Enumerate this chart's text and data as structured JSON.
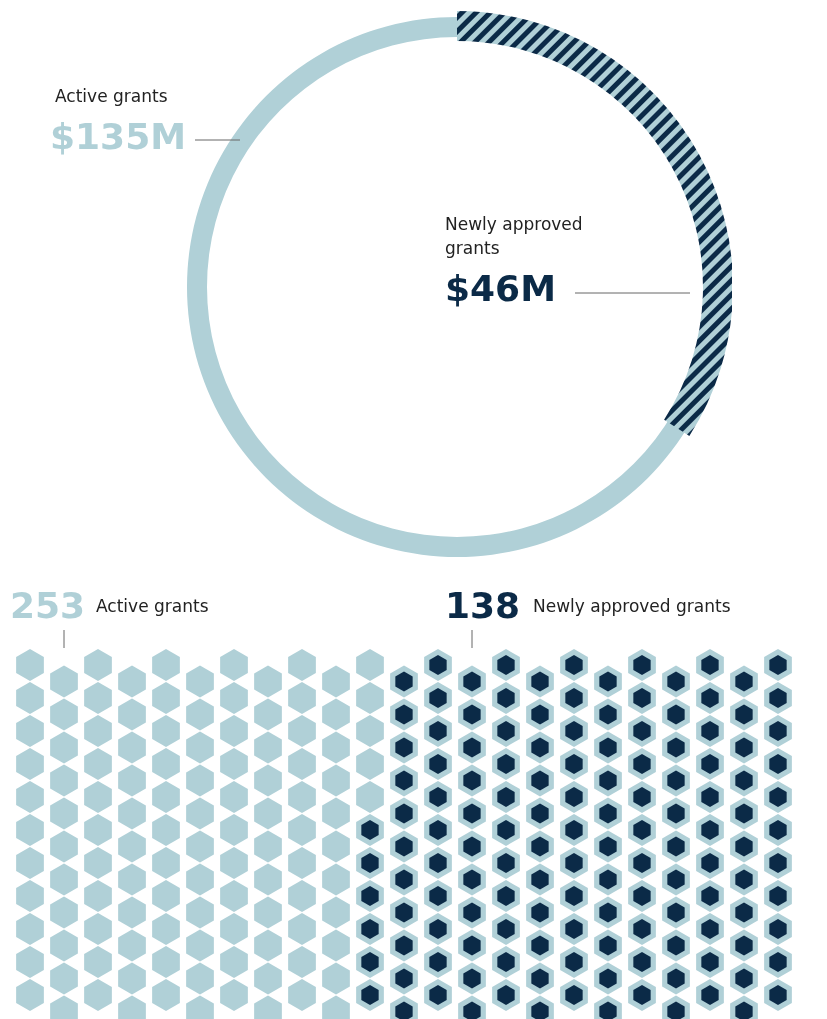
{
  "chart_data": [
    {
      "type": "other",
      "categories": [
        "Active grants",
        "Newly approved grants"
      ],
      "values": [
        135,
        46
      ],
      "value_labels": [
        "$135M",
        "$46M"
      ],
      "colors": [
        "#b0d0d7",
        "#0b2a47"
      ]
    },
    {
      "type": "other",
      "categories": [
        "Active grants",
        "Newly approved grants"
      ],
      "values": [
        253,
        138
      ],
      "value_labels": [
        "253",
        "138"
      ],
      "colors": [
        "#b0d0d7",
        "#0b2a47"
      ]
    }
  ]
}
